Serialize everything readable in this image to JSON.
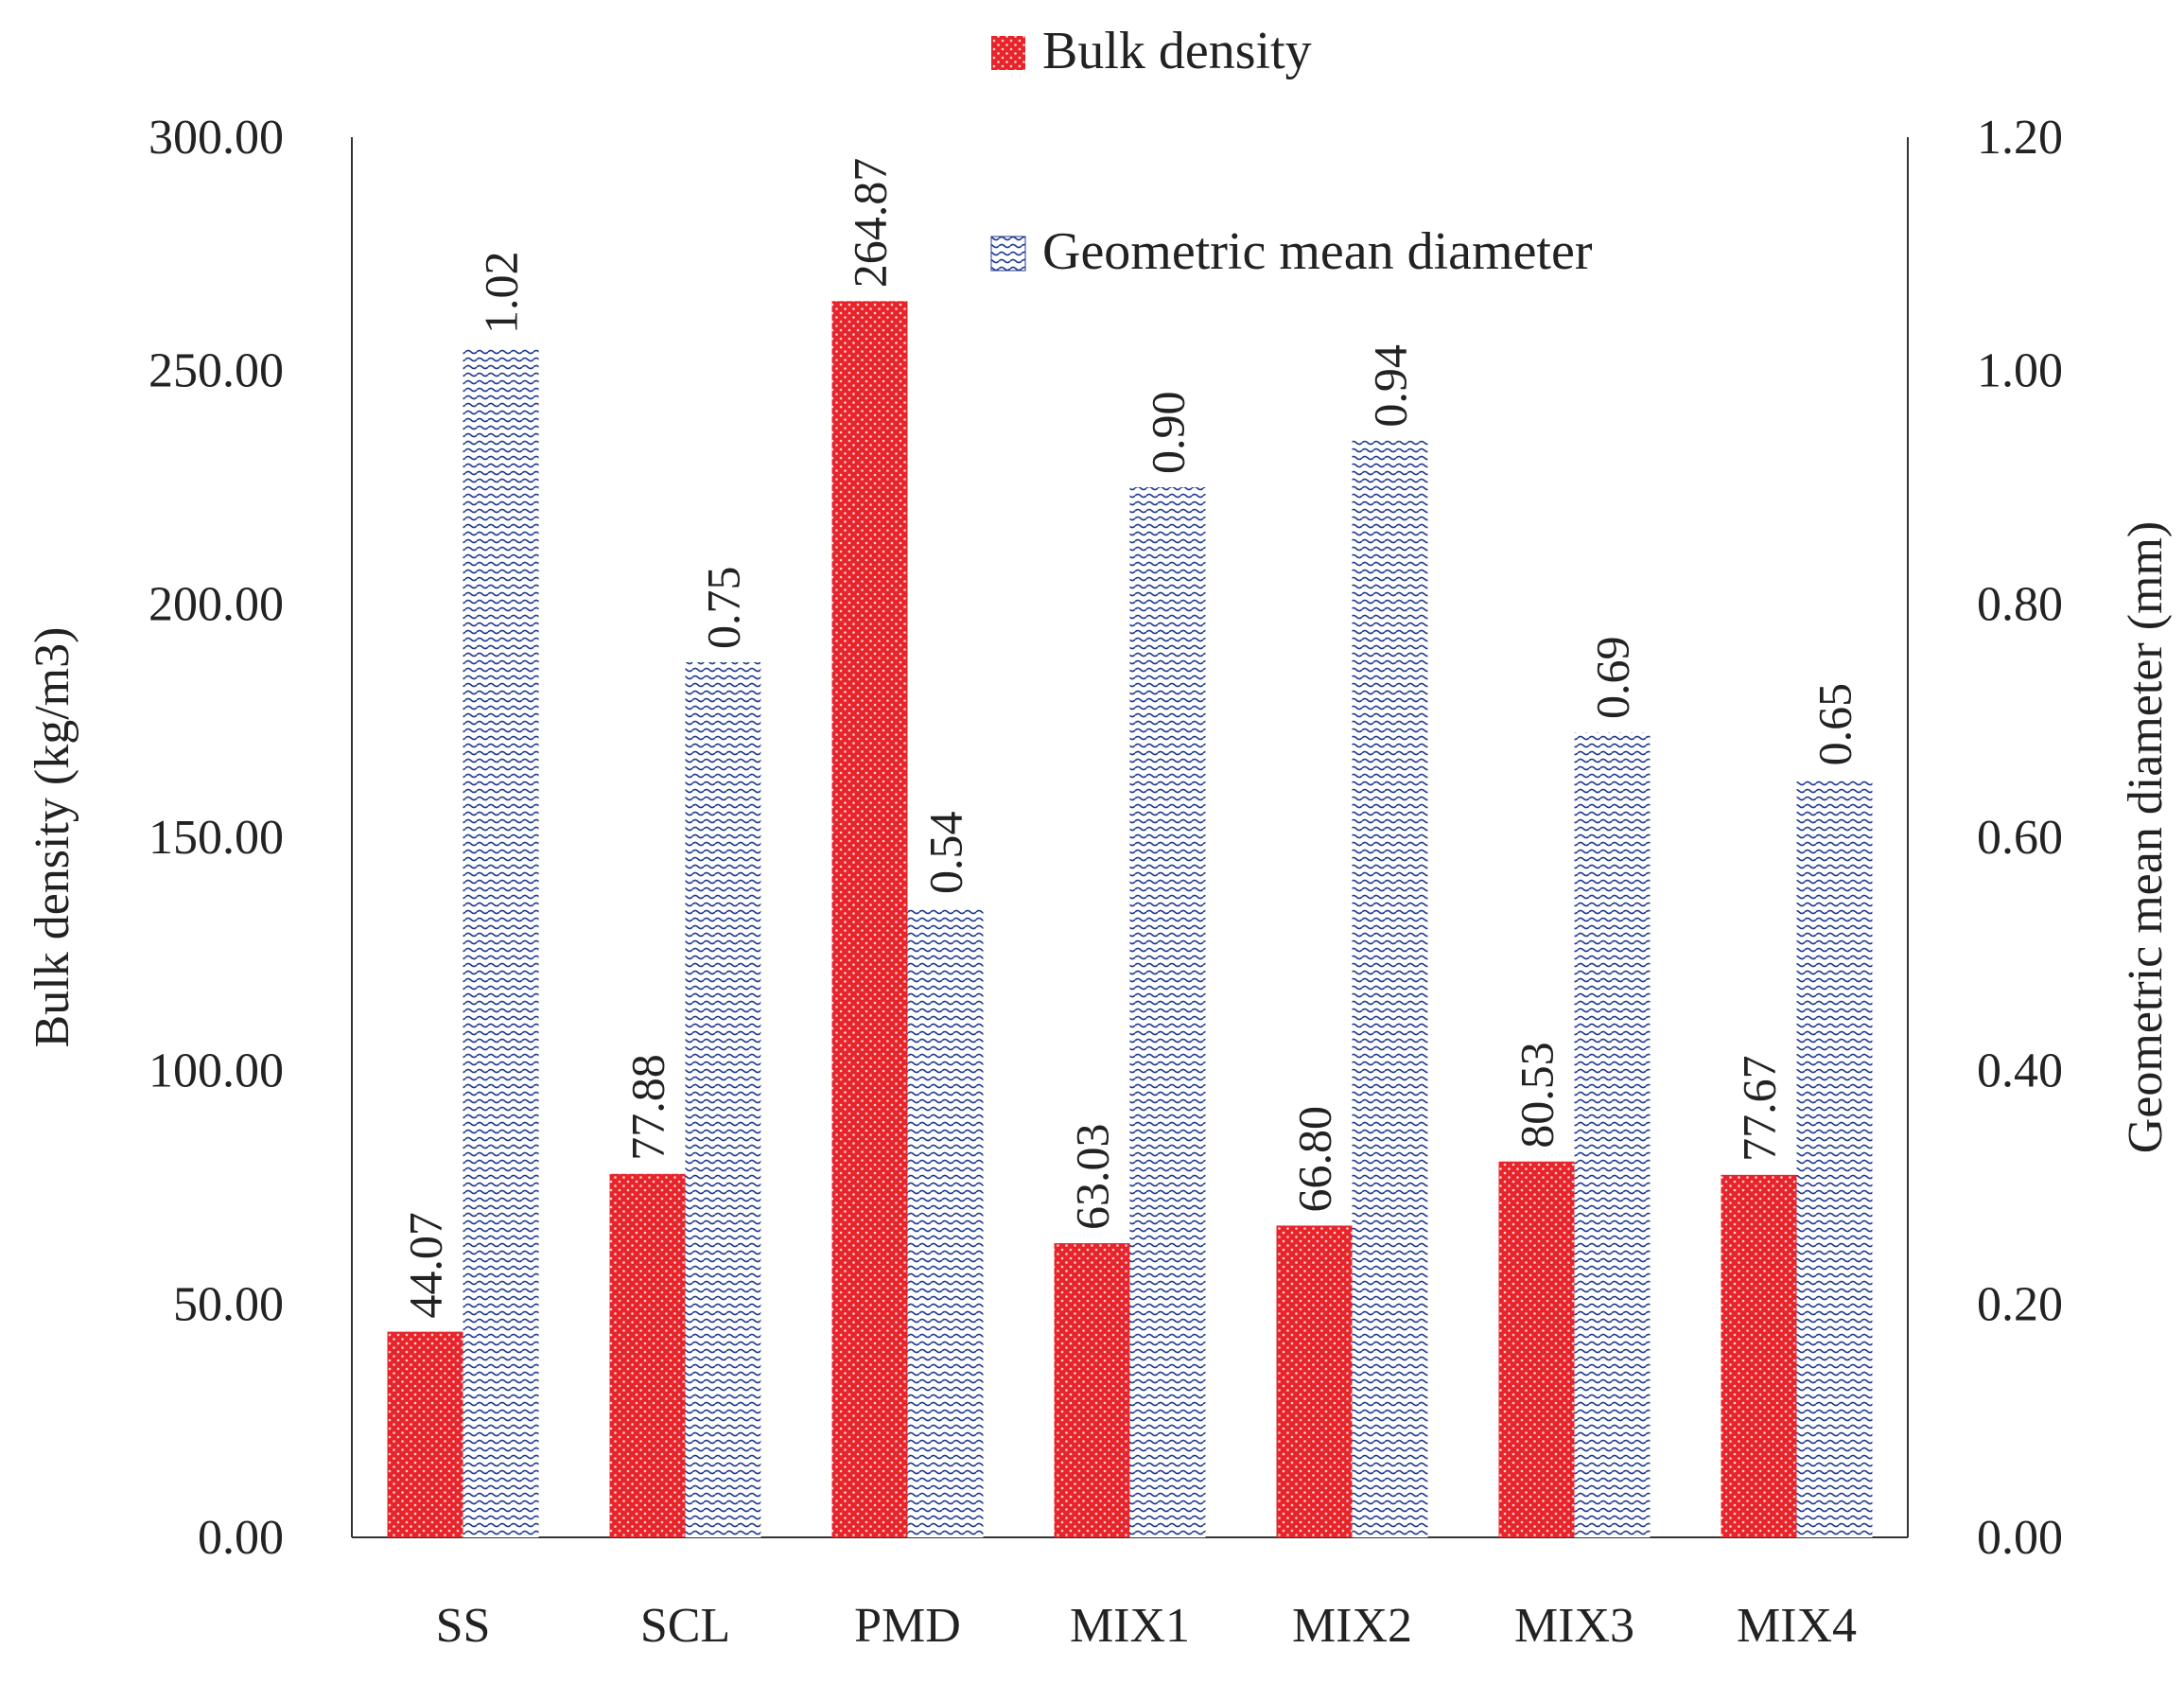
{
  "chart_data": {
    "type": "bar",
    "title": "",
    "xlabel": "",
    "categories": [
      "SS",
      "SCL",
      "PMD",
      "MIX1",
      "MIX2",
      "MIX3",
      "MIX4"
    ],
    "series": [
      {
        "name": "Bulk density",
        "axis": "left",
        "color": "#e8242b",
        "pattern": "small-dots",
        "values": [
          44.07,
          77.88,
          264.87,
          63.03,
          66.8,
          80.53,
          77.67
        ],
        "labels": [
          "44.07",
          "77.88",
          "264.87",
          "63.03",
          "66.80",
          "80.53",
          "77.67"
        ]
      },
      {
        "name": "Geometric mean diameter",
        "axis": "right",
        "color": "#1f3a8f",
        "pattern": "waves",
        "values": [
          1.02,
          0.75,
          0.54,
          0.9,
          0.94,
          0.69,
          0.65
        ],
        "labels": [
          "1.02",
          "0.75",
          "0.54",
          "0.90",
          "0.94",
          "0.69",
          "0.65"
        ]
      }
    ],
    "y_left": {
      "label": "Bulk density (kg/m3)",
      "ylim": [
        0,
        300
      ],
      "ticks": [
        "0.00",
        "50.00",
        "100.00",
        "150.00",
        "200.00",
        "250.00",
        "300.00"
      ]
    },
    "y_right": {
      "label": "Geometric mean diameter (mm)",
      "ylim": [
        0,
        1.2
      ],
      "ticks": [
        "0.00",
        "0.20",
        "0.40",
        "0.60",
        "0.80",
        "1.00",
        "1.20"
      ]
    },
    "grid": false,
    "legend": [
      "Bulk density",
      "Geometric mean diameter"
    ],
    "legend_position": "top"
  }
}
